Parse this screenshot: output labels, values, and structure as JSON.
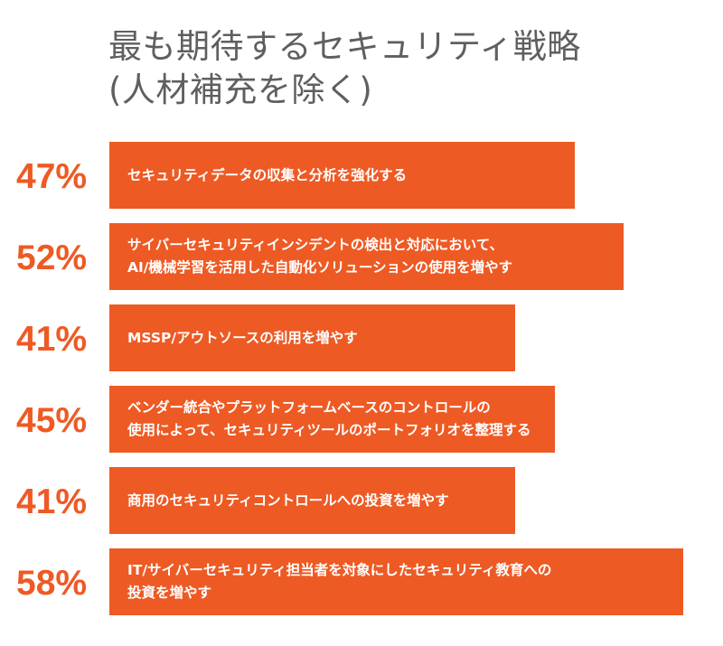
{
  "title": {
    "line1": "最も期待するセキュリティ戦略",
    "line2": "(人材補充を除く)"
  },
  "colors": {
    "accent": "#ee5a24",
    "title": "#5f5f5f",
    "bar_text": "#ffffff"
  },
  "chart_data": {
    "type": "bar",
    "orientation": "horizontal",
    "title": "最も期待するセキュリティ戦略 (人材補充を除く)",
    "value_format": "percent",
    "categories": [
      "セキュリティデータの収集と分析を強化する",
      "サイバーセキュリティインシデントの検出と対応において、\nAI/機械学習を活用した自動化ソリューションの使用を増やす",
      "MSSP/アウトソースの利用を増やす",
      "ベンダー統合やプラットフォームベースのコントロールの\n使用によって、セキュリティツールのポートフォリオを整理する",
      "商用のセキュリティコントロールへの投資を増やす",
      "IT/サイバーセキュリティ担当者を対象にしたセキュリティ教育への\n投資を増やす"
    ],
    "values": [
      47,
      52,
      41,
      45,
      41,
      58
    ],
    "labels": [
      "47%",
      "52%",
      "41%",
      "45%",
      "41%",
      "58%"
    ],
    "xlim": [
      0,
      58
    ],
    "grid": false,
    "legend": "none"
  }
}
